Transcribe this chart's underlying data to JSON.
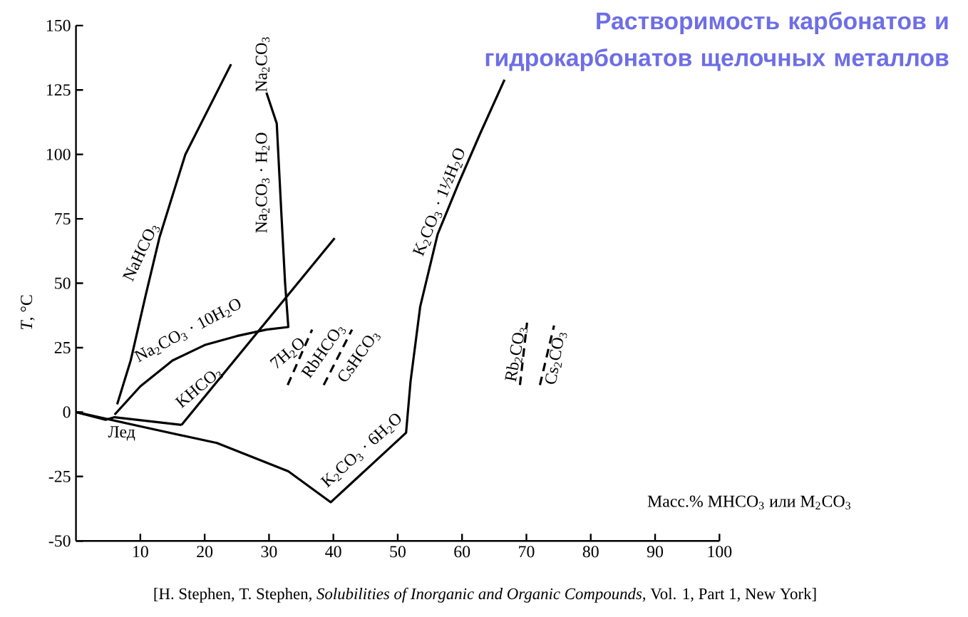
{
  "chart_data": {
    "type": "line",
    "title": "Растворимость карбонатов и гидрокарбонатов щелочных металлов",
    "xlabel": "Масс.% MHCO$_{3}$ или M$_{2}$CO$_{3}$",
    "ylabel": "*T*, °C",
    "xlim": [
      0,
      100
    ],
    "ylim": [
      -50,
      150
    ],
    "xticks": [
      10,
      20,
      30,
      40,
      50,
      60,
      70,
      80,
      90,
      100
    ],
    "yticks": [
      -50,
      -25,
      0,
      25,
      50,
      75,
      100,
      125,
      150
    ],
    "series": [
      {
        "color": "#000000",
        "x": [
          6.4,
          8.5,
          10.8,
          13,
          17,
          24.1
        ],
        "values": [
          3,
          20,
          45,
          68,
          100,
          135
        ]
      },
      {
        "color": "#000000",
        "x": [
          6,
          10,
          15,
          20,
          25,
          29.6,
          33,
          32.5,
          31.9,
          31.2,
          29.6
        ],
        "values": [
          -1,
          10,
          20,
          26,
          29.5,
          32,
          33,
          50,
          78,
          112,
          124
        ]
      },
      {
        "color": "#000000",
        "x": [
          16.4,
          40.2
        ],
        "values": [
          -5,
          67.5
        ]
      },
      {
        "color": "#000000",
        "x": [
          0,
          4.6,
          6,
          16.4
        ],
        "values": [
          0,
          -3,
          -2,
          -5
        ]
      },
      {
        "color": "#000000",
        "x": [
          0,
          10.8,
          21.9,
          33,
          39.6,
          51.3,
          52,
          53.5,
          56.2,
          59.5,
          62.8,
          66.6
        ],
        "values": [
          0,
          -6,
          -12,
          -23,
          -35,
          -8,
          12,
          41,
          69,
          89,
          108,
          129
        ]
      },
      {
        "color": "#000000",
        "line_style": "dashed",
        "x": [
          32.9,
          36.7
        ],
        "values": [
          10.5,
          32
        ]
      },
      {
        "color": "#000000",
        "line_style": "dashed",
        "x": [
          38.5,
          42.9
        ],
        "values": [
          10.5,
          32
        ]
      },
      {
        "color": "#000000",
        "line_style": "dashed",
        "x": [
          69,
          70.1
        ],
        "values": [
          10.5,
          34.7
        ]
      },
      {
        "color": "#000000",
        "line_style": "dashed",
        "x": [
          72.1,
          74.3
        ],
        "values": [
          10.5,
          33.6
        ]
      }
    ],
    "annotations": [
      "NaHCO$_{3}$",
      "Na$_{2}$CO$_{3}$ · H$_{2}$O",
      "Na$_{2}$CO$_{3}$",
      "Na$_{2}$CO$_{3}$ · 10H$_{2}$O",
      "KHCO$_{3}$",
      "7H$_{2}$O",
      "RbHCO$_{3}$",
      "CsHCO$_{3}$",
      "Лед",
      "K$_{2}$CO$_{3}$ · 6H$_{2}$O",
      "K$_{2}$CO$_{3}$ · 1½H$_{2}$O",
      "Rb$_{2}$CO$_{3}$",
      "Cs$_{2}$CO$_{3}$",
      "[H. Stephen, T. Stephen, *Solubilities of Inorganic and Organic Compounds*, Vol. 1, Part 1, New York]"
    ]
  }
}
